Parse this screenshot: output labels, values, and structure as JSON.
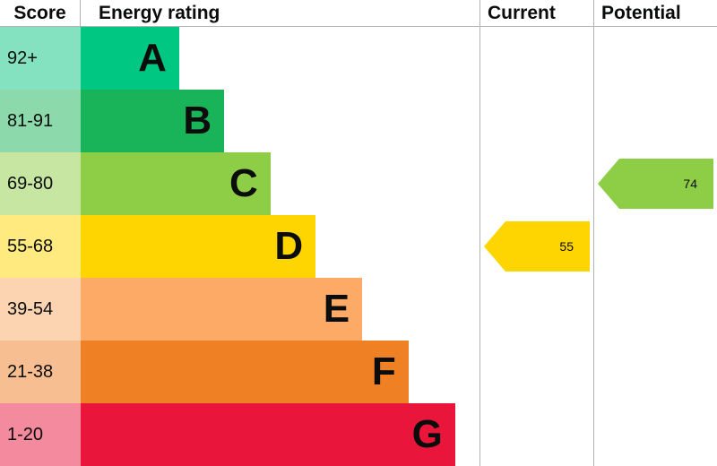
{
  "header": {
    "score": "Score",
    "rating": "Energy rating",
    "current": "Current",
    "potential": "Potential"
  },
  "chart_data": {
    "type": "bar",
    "title": "EPC energy rating chart",
    "columns": [
      "Score",
      "Energy rating",
      "Current",
      "Potential"
    ],
    "bands": [
      {
        "score": "92+",
        "letter": "A",
        "color": "#00c781",
        "tint": "#84e2c0",
        "width_pct": 24.7
      },
      {
        "score": "81-91",
        "letter": "B",
        "color": "#19b459",
        "tint": "#8cd9ac",
        "width_pct": 36.0
      },
      {
        "score": "69-80",
        "letter": "C",
        "color": "#8dce46",
        "tint": "#c6e6a2",
        "width_pct": 47.6
      },
      {
        "score": "55-68",
        "letter": "D",
        "color": "#ffd500",
        "tint": "#ffea80",
        "width_pct": 58.9
      },
      {
        "score": "39-54",
        "letter": "E",
        "color": "#fcaa65",
        "tint": "#fdd4b2",
        "width_pct": 70.6
      },
      {
        "score": "21-38",
        "letter": "F",
        "color": "#ef8023",
        "tint": "#f7bf91",
        "width_pct": 82.2
      },
      {
        "score": "1-20",
        "letter": "G",
        "color": "#e9153b",
        "tint": "#f48a9d",
        "width_pct": 93.9
      }
    ],
    "current": {
      "value": 55,
      "band_letter": "D",
      "band_index": 3,
      "color": "#ffd500"
    },
    "potential": {
      "value": 74,
      "band_letter": "C",
      "band_index": 2,
      "color": "#8dce46"
    }
  }
}
